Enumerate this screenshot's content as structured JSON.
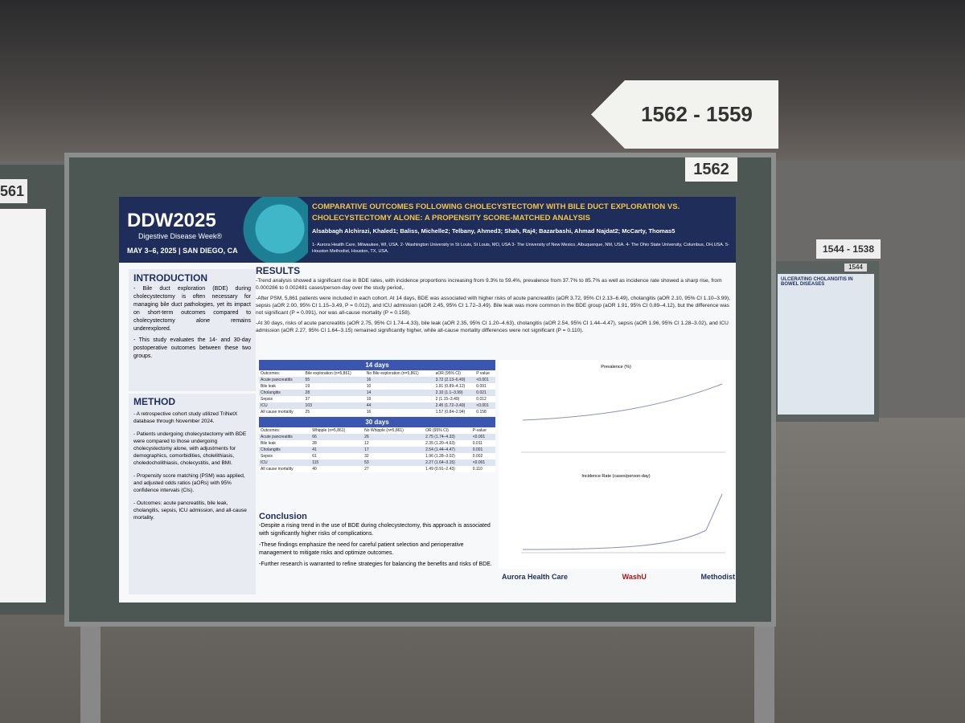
{
  "signs": {
    "aisle": "1562 - 1559",
    "board": "1562",
    "left_board": "561",
    "right_aisle": "1544 - 1538",
    "right_board": "1544",
    "right_poster_title": "ULCERATING CHOLANGITIS IN BOWEL DISEASES"
  },
  "poster": {
    "logo": "DDW2025",
    "logo_sub": "Digestive Disease Week®",
    "dates": "MAY 3–6, 2025 | SAN DIEGO, CA",
    "title": "COMPARATIVE OUTCOMES FOLLOWING CHOLECYSTECTOMY WITH BILE DUCT EXPLORATION VS. CHOLECYSTECTOMY ALONE: A PROPENSITY SCORE-MATCHED ANALYSIS",
    "authors": "Alsabbagh Alchirazi, Khaled1; Baliss, Michelle2; Telbany, Ahmed3; Shah, Raj4; Bazarbashi, Ahmad Najdat2; McCarty, Thomas5",
    "affiliations": "1- Aurora Health Care, Milwaukee, WI, USA. 2- Washington University in St Louis, St Louis, MO, USA 3- The University of New Mexico, Albuquerque, NM, USA. 4- The Ohio State University, Columbus, OH,USA. 5- Houston Methodist, Houston, TX, USA.",
    "introduction": {
      "heading": "INTRODUCTION",
      "paragraphs": [
        "- Bile duct exploration (BDE) during cholecystectomy is often necessary for managing bile duct pathologies, yet its impact on short-term outcomes compared to cholecystectomy alone remains underexplored.",
        "- This study evaluates the 14- and 30-day postoperative outcomes between these two groups."
      ]
    },
    "method": {
      "heading": "METHOD",
      "paragraphs": [
        "- A retrospective cohort study utilized TriNetX database through November 2024.",
        "- Patients undergoing cholecystectomy with BDE were compared to those undergoing cholecystectomy alone, with adjustments for demographics, comorbidities, cholelithiasis, choledocholithiasis, cholecystitis, and BMI.",
        "- Propensity score matching (PSM) was applied, and adjusted odds ratios (aORs) with 95% confidence intervals (CIs).",
        "- Outcomes: acute pancreatitis, bile leak, cholangitis, sepsis, ICU admission, and all-cause mortality."
      ]
    },
    "results": {
      "heading": "RESULTS",
      "paragraphs": [
        "-Trend analysis showed a significant rise in BDE rates, with incidence proportions increasing from 9.3% to 59.4%, prevalence from 37.7% to 85.7% as well as incidence rate showed a sharp rise, from 0.000286 to 0.002481 cases/person-day over the study period,.",
        "-After PSM, 5,861 patients were included in each cohort. At 14 days, BDE was associated with higher risks of acute pancreatitis (aOR 3.72, 95% CI 2.13–6.49), cholangitis (aOR 2.10, 95% CI 1.10–3.99), sepsis (aOR 2.00, 95% CI 1.15–3.49, P = 0.012), and ICU admission (aOR 2.45, 95% CI 1.72–3.49). Bile leak was more common in the BDE group (aOR 1.91, 95% CI 0.89–4.12), but the difference was not significant (P = 0.091), nor was all-cause mortality (P = 0.158).",
        "-At 30 days, risks of acute pancreatitis (aOR 2.75, 95% CI 1.74–4.33), bile leak (aOR 2.35, 95% CI 1.20–4.63), cholangitis (aOR 2.54, 95% CI 1.44–4.47), sepsis (aOR 1.96, 95% CI 1.28–3.02), and ICU admission (aOR 2.27, 95% CI 1.64–3.15) remained significantly higher, while all-cause mortality differences were not significant (P = 0.110)."
      ]
    },
    "tables": [
      {
        "caption": "14 days",
        "header": [
          "Outcomes:",
          "Bile exploration (n=5,861)",
          "No Bile exploration (n=5,861)",
          "aOR (95% CI)",
          "P value"
        ],
        "rows": [
          [
            "Acute pancreatitis",
            "55",
            "16",
            "3.72 (2.13–6.49)",
            "<0.001"
          ],
          [
            "Bile leak",
            "19",
            "10",
            "1.91 (0.89–4.12)",
            "0.091"
          ],
          [
            "Cholangitis",
            "28",
            "14",
            "2.10 (1.1–3.99)",
            "0.021"
          ],
          [
            "Sepsis",
            "37",
            "19",
            "2 (1.15–3.49)",
            "0.012"
          ],
          [
            "ICU",
            "103",
            "44",
            "2.45 (1.72–3.49)",
            "<0.001"
          ],
          [
            "All cause mortality",
            "25",
            "16",
            "1.57 (0.84–2.94)",
            "0.158"
          ]
        ]
      },
      {
        "caption": "30 days",
        "header": [
          "Outcomes:",
          "Whipple (n=5,861)",
          "No Whipple (n=5,861)",
          "OR (95% CI)",
          "P-value"
        ],
        "rows": [
          [
            "Acute pancreatitis",
            "66",
            "26",
            "2.75 (1.74–4.33)",
            "<0.001"
          ],
          [
            "Bile leak",
            "28",
            "12",
            "2.35 (1.20–4.63)",
            "0.011"
          ],
          [
            "Cholangitis",
            "41",
            "17",
            "2.54 (1.44–4.47)",
            "0.001"
          ],
          [
            "Sepsis",
            "61",
            "32",
            "1.96 (1.28–3.02)",
            "0.002"
          ],
          [
            "ICU",
            "115",
            "53",
            "2.27 (1.64–3.15)",
            "<0.001"
          ],
          [
            "All cause mortality",
            "40",
            "27",
            "1.49 (0.91–2.43)",
            "0.110"
          ]
        ]
      }
    ],
    "charts": [
      "Prevalence (%)",
      "Incidence Rate (cases/person-day)"
    ],
    "conclusion": {
      "heading": "Conclusion",
      "paragraphs": [
        "-Despite a rising trend in the use of BDE during cholecystectomy, this approach is associated with significantly higher risks of complications.",
        "-These findings emphasize the need for careful patient selection and perioperative management to mitigate risks and optimize outcomes.",
        "-Further research is warranted to refine strategies for balancing the benefits and risks of BDE."
      ]
    },
    "logos": [
      "Aurora Health Care",
      "WashU",
      "Methodist"
    ]
  }
}
